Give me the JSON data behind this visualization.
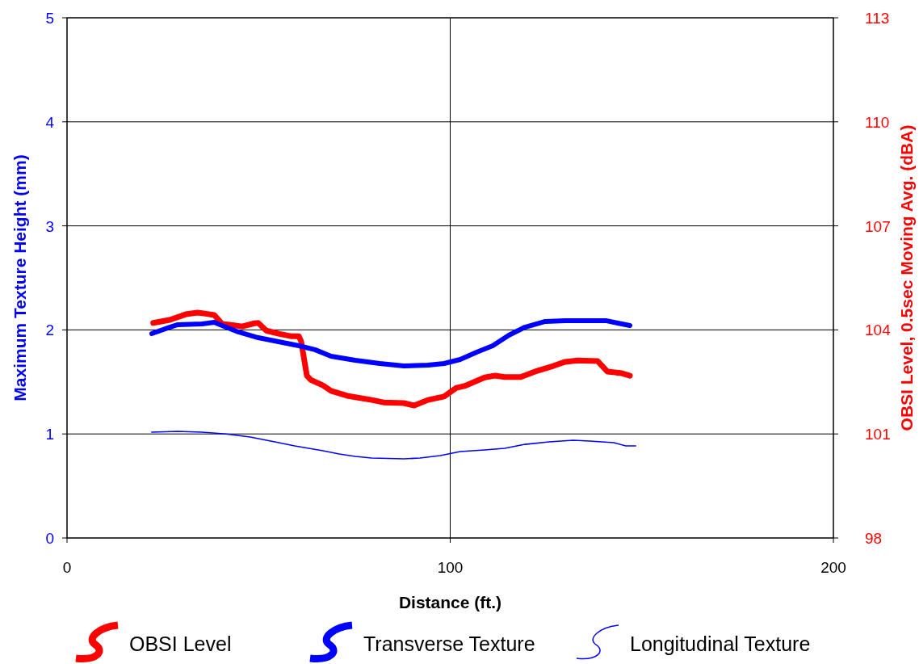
{
  "chart_data": {
    "type": "line",
    "xlabel": "Distance (ft.)",
    "ylabel": "Maximum Texture Height (mm)",
    "y2label": "OBSI Level, 0.5sec Moving Avg. (dBA)",
    "xlim": [
      0,
      200
    ],
    "xticks": [
      0,
      100,
      200
    ],
    "ylim": [
      0,
      5
    ],
    "yticks": [
      0,
      1,
      2,
      3,
      4,
      5
    ],
    "y2lim": [
      98,
      113
    ],
    "y2ticks": [
      98,
      101,
      104,
      107,
      110,
      113
    ],
    "grid": true,
    "legend": "bottom",
    "marker": "none",
    "line_style": "solid",
    "series": [
      {
        "name": "OBSI Level",
        "color": "#ff0000",
        "axis": "y2",
        "x": [
          22.5,
          26.8,
          31,
          34.1,
          38.4,
          40.5,
          43.6,
          45.7,
          48.9,
          49.9,
          52,
          55.2,
          58.4,
          60.5,
          61.1,
          62.6,
          63.6,
          66.8,
          68.9,
          73.1,
          79.5,
          82.6,
          87.9,
          90.6,
          94.2,
          98.4,
          101.6,
          103.7,
          109,
          111.7,
          114.2,
          118.4,
          122.7,
          126.9,
          130,
          133.2,
          138.5,
          141,
          144.8,
          146.9
        ],
        "values": [
          104.2,
          104.29,
          104.45,
          104.5,
          104.43,
          104.17,
          104.13,
          104.1,
          104.19,
          104.2,
          103.98,
          103.89,
          103.82,
          103.82,
          103.67,
          102.68,
          102.56,
          102.4,
          102.24,
          102.1,
          101.98,
          101.91,
          101.89,
          101.82,
          101.98,
          102.08,
          102.33,
          102.38,
          102.63,
          102.68,
          102.64,
          102.64,
          102.82,
          102.96,
          103.08,
          103.12,
          103.1,
          102.8,
          102.75,
          102.68
        ]
      },
      {
        "name": "Transverse Texture",
        "color": "#0000ff",
        "x": [
          22.1,
          26.8,
          28.9,
          35.2,
          38.4,
          41.5,
          44.7,
          49.9,
          55.2,
          60.5,
          64.7,
          68.9,
          75.2,
          81.6,
          87.9,
          94.2,
          98.4,
          102.6,
          106.9,
          111.1,
          115.3,
          119.5,
          124.8,
          130,
          140.6,
          142.7,
          146.9
        ],
        "values": [
          1.964,
          2.026,
          2.05,
          2.057,
          2.073,
          2.026,
          1.98,
          1.925,
          1.887,
          1.848,
          1.81,
          1.747,
          1.708,
          1.677,
          1.654,
          1.661,
          1.677,
          1.716,
          1.786,
          1.848,
          1.949,
          2.026,
          2.081,
          2.089,
          2.089,
          2.073,
          2.042
        ]
      },
      {
        "name": "Longitudinal Texture",
        "color": "#0000ff",
        "x": [
          22.1,
          28.9,
          35.2,
          41.5,
          47.8,
          54.2,
          59.4,
          66.8,
          71,
          75.2,
          79.5,
          87.9,
          92.1,
          97.4,
          102.6,
          109,
          114.2,
          119.5,
          125.8,
          132.1,
          136.4,
          142.7,
          145.8,
          148.4
        ],
        "values": [
          1.017,
          1.025,
          1.017,
          1.0,
          0.97,
          0.924,
          0.885,
          0.839,
          0.807,
          0.784,
          0.769,
          0.761,
          0.769,
          0.792,
          0.831,
          0.846,
          0.862,
          0.9,
          0.924,
          0.94,
          0.932,
          0.916,
          0.885,
          0.885
        ]
      }
    ]
  }
}
